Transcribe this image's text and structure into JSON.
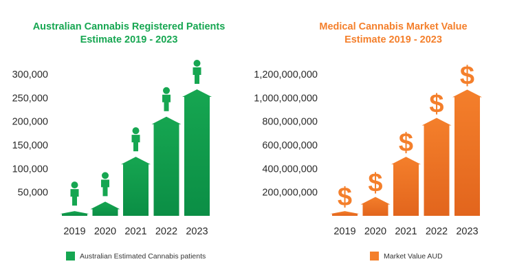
{
  "colors": {
    "patients": "#16a651",
    "patients_dark": "#0b8e45",
    "market": "#f47f2b",
    "market_dark": "#e2651d"
  },
  "chart_data": [
    {
      "type": "bar",
      "title_line1": "Australian Cannabis Registered Patients",
      "title_line2": "Estimate 2019 - 2023",
      "categories": [
        "2019",
        "2020",
        "2021",
        "2022",
        "2023"
      ],
      "series": [
        {
          "name": "Australian Estimated Cannabis patients",
          "values": [
            10000,
            30000,
            125000,
            210000,
            268000
          ]
        }
      ],
      "ylim": [
        0,
        300000
      ],
      "y_ticks": [
        50000,
        100000,
        150000,
        200000,
        250000,
        300000
      ],
      "y_tick_labels": [
        "50,000",
        "100,000",
        "150,000",
        "200,000",
        "250,000",
        "300,000"
      ],
      "bar_icon": "person-icon",
      "legend_position": "bottom-center",
      "grid": false
    },
    {
      "type": "bar",
      "title_line1": "Medical Cannabis Market Value",
      "title_line2": "Estimate 2019 - 2023",
      "categories": [
        "2019",
        "2020",
        "2021",
        "2022",
        "2023"
      ],
      "series": [
        {
          "name": "Market Value AUD",
          "values": [
            40000000,
            160000000,
            500000000,
            830000000,
            1070000000
          ]
        }
      ],
      "ylim": [
        0,
        1200000000
      ],
      "y_ticks": [
        200000000,
        400000000,
        600000000,
        800000000,
        1000000000,
        1200000000
      ],
      "y_tick_labels": [
        "200,000,000",
        "400,000,000",
        "600,000,000",
        "800,000,000",
        "1,000,000,000",
        "1,200,000,000"
      ],
      "bar_icon": "dollar-sign-icon",
      "legend_position": "bottom-center",
      "grid": false
    }
  ]
}
